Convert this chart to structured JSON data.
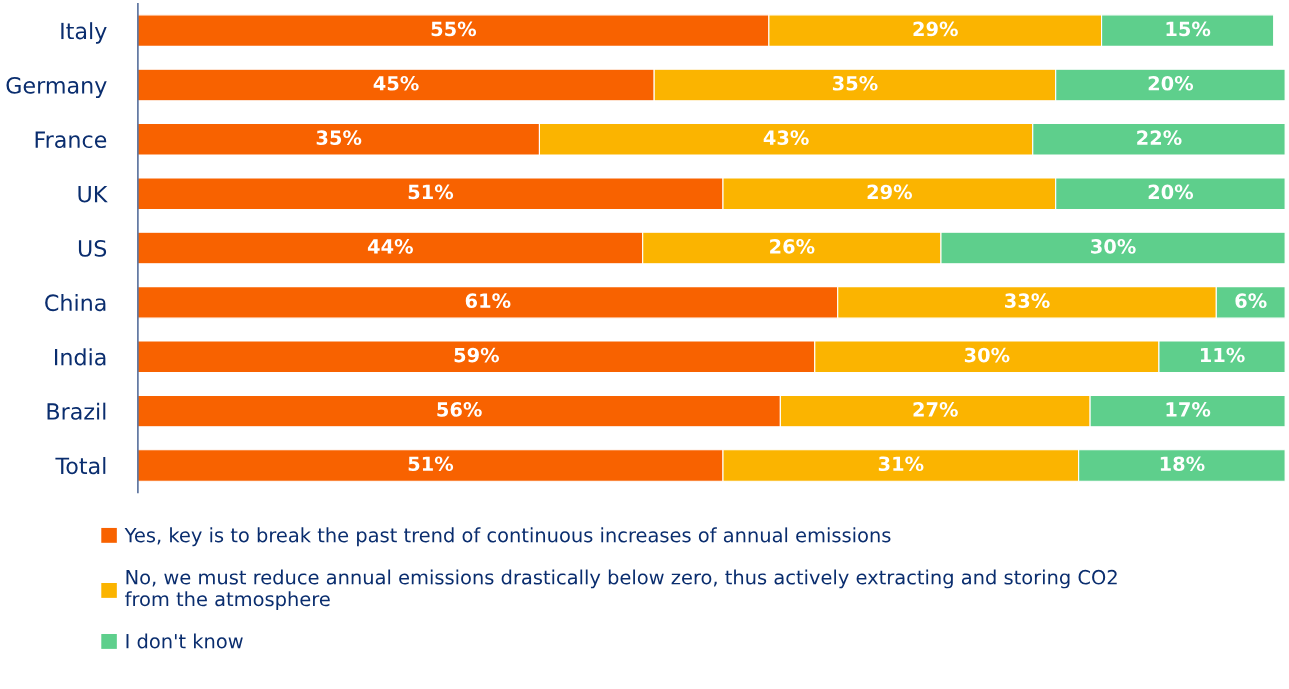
{
  "chart_data": {
    "type": "bar",
    "orientation": "horizontal",
    "stacked": true,
    "legend": "bottom",
    "grid": false,
    "categories": [
      "Italy",
      "Germany",
      "France",
      "UK",
      "US",
      "China",
      "India",
      "Brazil",
      "Total"
    ],
    "series": [
      {
        "name": "Yes, key is to break the past trend of continuous increases of annual emissions",
        "color": "#f86200",
        "values": [
          55,
          45,
          35,
          51,
          44,
          61,
          59,
          56,
          51
        ],
        "value_labels": [
          "55%",
          "45%",
          "35%",
          "51%",
          "44%",
          "61%",
          "59%",
          "56%",
          "51%"
        ]
      },
      {
        "name": "No, we must reduce annual emissions drastically below zero, thus actively extracting and storing CO2 from the atmosphere",
        "color": "#fbb400",
        "values": [
          29,
          35,
          43,
          29,
          26,
          33,
          30,
          27,
          31
        ],
        "value_labels": [
          "29%",
          "35%",
          "43%",
          "29%",
          "26%",
          "33%",
          "30%",
          "27%",
          "31%"
        ]
      },
      {
        "name": "I don't know",
        "color": "#5ecf8c",
        "values": [
          15,
          20,
          22,
          20,
          30,
          6,
          11,
          17,
          18
        ],
        "value_labels": [
          "15%",
          "20%",
          "22%",
          "20%",
          "30%",
          "6%",
          "11%",
          "17%",
          "18%"
        ]
      }
    ]
  }
}
